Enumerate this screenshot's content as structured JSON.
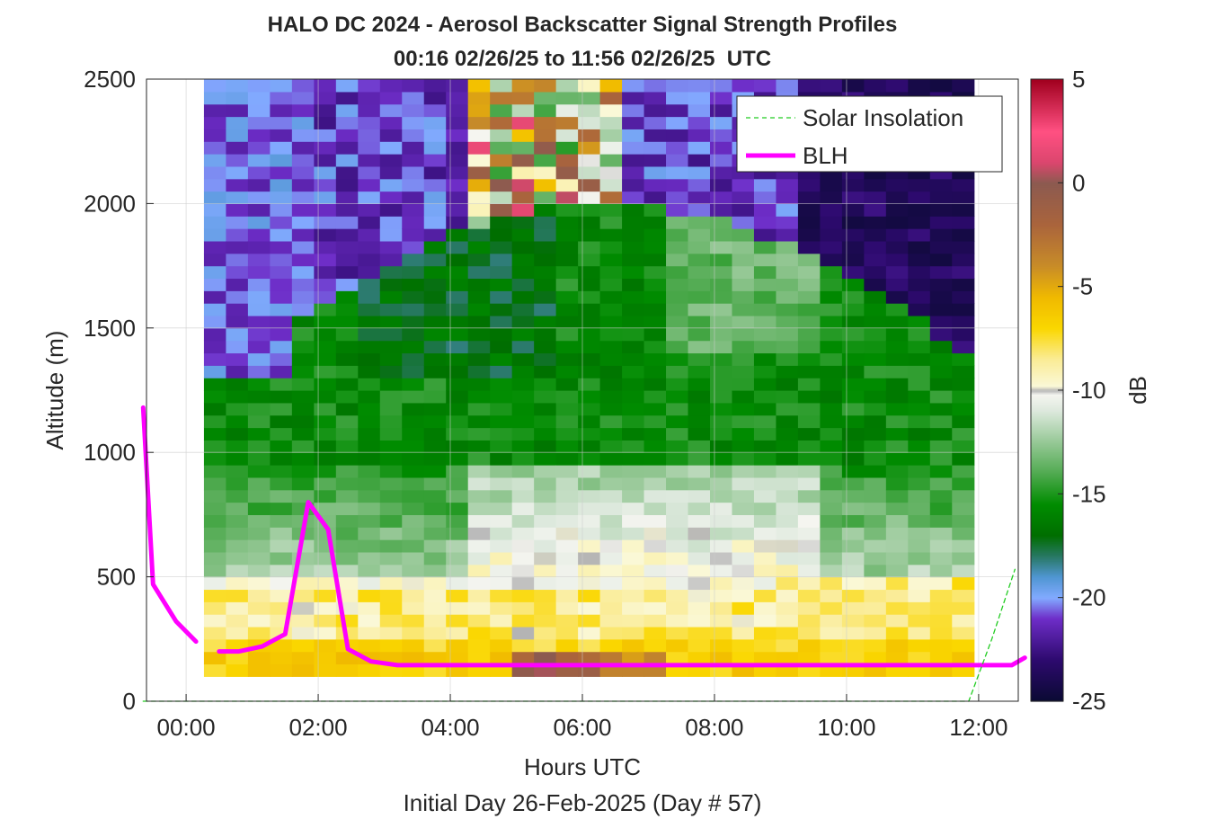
{
  "chart_data": {
    "type": "heatmap",
    "title": "HALO DC 2024 - Aerosol Backscatter Signal Strength Profiles",
    "subtitle": "00:16 02/26/25 to 11:56 02/26/25  UTC",
    "xlabel": "Hours UTC",
    "xlabel2": "Initial Day 26-Feb-2025 (Day # 57)",
    "ylabel": "Altitude (m)",
    "xlim": [
      -0.6,
      12.6
    ],
    "ylim": [
      0,
      2500
    ],
    "x_ticks": [
      0,
      2,
      4,
      6,
      8,
      10,
      12
    ],
    "x_tick_labels": [
      "00:00",
      "02:00",
      "04:00",
      "06:00",
      "08:00",
      "10:00",
      "12:00"
    ],
    "y_ticks": [
      0,
      500,
      1000,
      1500,
      2000,
      2500
    ],
    "y_tick_labels": [
      "0",
      "500",
      "1000",
      "1500",
      "2000",
      "2500"
    ],
    "grid": true,
    "colorbar": {
      "label": "dB",
      "clim": [
        -25,
        5
      ],
      "ticks": [
        5,
        0,
        -5,
        -10,
        -15,
        -20,
        -25
      ],
      "tick_labels": [
        "5",
        "0",
        "-5",
        "-10",
        "-15",
        "-20",
        "-25"
      ]
    },
    "heatmap": {
      "x_start_hours": 0.27,
      "x_end_hours": 11.93,
      "y_bins_m": [
        100,
        150,
        200,
        250,
        300,
        350,
        400,
        450,
        500,
        550,
        600,
        650,
        700,
        750,
        800,
        850,
        900,
        950,
        1000,
        1050,
        1100,
        1150,
        1200,
        1250,
        1300,
        1350,
        1400,
        1450,
        1500,
        1550,
        1600,
        1650,
        1700,
        1750,
        1800,
        1850,
        1900,
        1950,
        2000,
        2050,
        2100,
        2150,
        2200,
        2250,
        2300,
        2350,
        2400,
        2450,
        2500
      ],
      "num_columns": 35
    },
    "legend": {
      "placement": "top-right",
      "entries": [
        "Solar Insolation",
        "BLH"
      ]
    },
    "series": [
      {
        "name": "BLH",
        "color": "#ff00ff",
        "x": [
          -0.65,
          -0.5,
          -0.15,
          0.15
        ],
        "y": [
          1180,
          470,
          320,
          240
        ]
      },
      {
        "name": "BLH",
        "color": "#ff00ff",
        "x": [
          0.5,
          0.8,
          1.15,
          1.5,
          1.85,
          2.15,
          2.45,
          2.8,
          3.2,
          4.0,
          6.0,
          8.0,
          10.0,
          12.0,
          12.5,
          12.7
        ],
        "y": [
          200,
          200,
          220,
          270,
          800,
          690,
          210,
          160,
          145,
          145,
          145,
          145,
          145,
          145,
          145,
          175
        ]
      },
      {
        "name": "Solar Insolation",
        "color": "#22cc22",
        "x": [
          -0.65,
          11.85,
          12.2,
          12.55
        ],
        "y": [
          0,
          0,
          250,
          530
        ]
      }
    ]
  }
}
